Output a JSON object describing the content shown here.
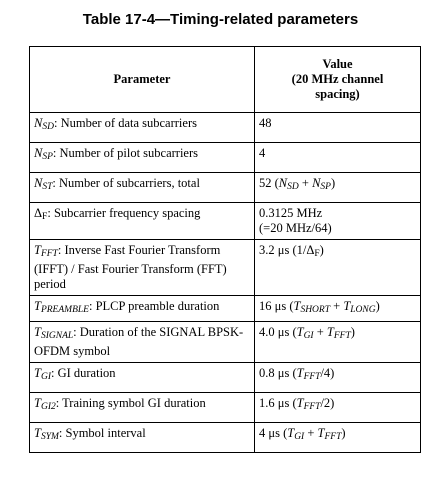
{
  "title": "Table 17-4—Timing-related parameters",
  "header": {
    "parameter": "Parameter",
    "value_line1": "Value",
    "value_line2": "(20 MHz channel",
    "value_line3": "spacing)"
  },
  "rows": [
    {
      "sym": "N",
      "sub": "SD",
      "param": ": Number of data subcarriers",
      "value": "48"
    },
    {
      "sym": "N",
      "sub": "SP",
      "param": ": Number of pilot subcarriers",
      "value": "4"
    },
    {
      "sym": "N",
      "sub": "ST",
      "param": ": Number of subcarriers, total",
      "value_pre": "52 (",
      "v1": "N",
      "v1sub": "SD",
      "vmid": " + ",
      "v2": "N",
      "v2sub": "SP",
      "vpost": ")"
    },
    {
      "sym": "Δ",
      "sub": "F",
      "param": ": Subcarrier frequency spacing",
      "value_line1": "0.3125 MHz",
      "value_line2": "(=20 MHz/64)"
    },
    {
      "sym": "T",
      "sub": "FFT",
      "param": ": Inverse Fast Fourier Transform (IFFT) / Fast Fourier Transform (FFT) period",
      "value_pre": "3.2 μs (1/Δ",
      "vsub": "F",
      "vpost": ")"
    },
    {
      "sym": "T",
      "sub": "PREAMBLE",
      "param": ": PLCP preamble duration",
      "value_pre": "16 μs (",
      "v1": "T",
      "v1sub": "SHORT",
      "vmid": " + ",
      "v2": "T",
      "v2sub": "LONG",
      "vpost": ")"
    },
    {
      "sym": "T",
      "sub": "SIGNAL",
      "param": ": Duration of the SIGNAL BPSK-OFDM symbol",
      "value_pre": "4.0 μs (",
      "v1": "T",
      "v1sub": "GI",
      "vmid": " + ",
      "v2": "T",
      "v2sub": "FFT",
      "vpost": ")"
    },
    {
      "sym": "T",
      "sub": "GI",
      "param": ": GI duration",
      "value_pre": "0.8 μs (",
      "v1": "T",
      "v1sub": "FFT",
      "vpost": "/4)"
    },
    {
      "sym": "T",
      "sub": "GI2",
      "param": ": Training symbol GI duration",
      "value_pre": "1.6 μs (",
      "v1": "T",
      "v1sub": "FFT",
      "vpost": "/2)"
    },
    {
      "sym": "T",
      "sub": "SYM",
      "param": ": Symbol interval",
      "value_pre": "4 μs (",
      "v1": "T",
      "v1sub": "GI",
      "vmid": " + ",
      "v2": "T",
      "v2sub": "FFT",
      "vpost": ")"
    }
  ]
}
